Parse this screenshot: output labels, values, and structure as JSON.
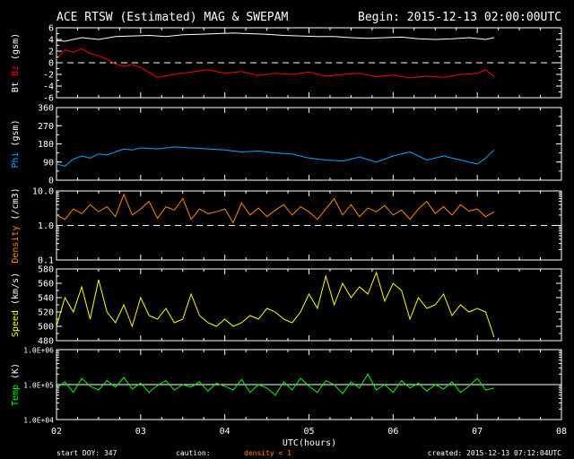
{
  "header": {
    "title": "ACE RTSW (Estimated) MAG & SWEPAM",
    "begin": "Begin: 2015-12-13 02:00:00UTC"
  },
  "footer": {
    "start_doy": "start DOY: 347",
    "caution": "caution:",
    "density_note": "density < 1",
    "created": "created: 2015-12-13 07:12:04UTC"
  },
  "colors": {
    "bt": "#ffffff",
    "bz": "#ff0000",
    "phi": "#00aaff",
    "density": "#ff8800",
    "speed": "#ffff00",
    "temp": "#00ff00",
    "frame": "#ffffff"
  },
  "chart_data": {
    "type": "line",
    "x_axis": {
      "xlabel": "UTC(hours)",
      "range": [
        2,
        8
      ],
      "ticks": [
        2,
        3,
        4,
        5,
        6,
        7,
        8
      ],
      "tick_labels": [
        "02",
        "03",
        "04",
        "05",
        "06",
        "07",
        "08"
      ]
    },
    "panels": [
      {
        "id": "mag",
        "ylabel_parts": [
          {
            "text": "Bt",
            "color": "#ffffff"
          },
          {
            "text": " ",
            "color": "#ffffff"
          },
          {
            "text": "Bz",
            "color": "#ff0000"
          },
          {
            "text": " (gsm)",
            "color": "#ffffff"
          }
        ],
        "scale": "linear",
        "ylim": [
          -6,
          6
        ],
        "yticks": [
          -6,
          -4,
          -2,
          0,
          2,
          4,
          6
        ],
        "ytick_labels": [
          "-6",
          "-4",
          "-2",
          "0",
          "2",
          "4",
          "6"
        ],
        "reference_lines": [
          0
        ],
        "series": [
          {
            "name": "Bt",
            "color": "#ffffff",
            "x": [
              2.0,
              2.1,
              2.3,
              2.5,
              2.7,
              2.9,
              3.1,
              3.3,
              3.5,
              3.7,
              3.9,
              4.1,
              4.3,
              4.5,
              4.7,
              4.9,
              5.1,
              5.3,
              5.5,
              5.7,
              5.9,
              6.1,
              6.3,
              6.5,
              6.7,
              6.9,
              7.1,
              7.2
            ],
            "y": [
              3.8,
              3.7,
              4.3,
              4.0,
              4.5,
              4.6,
              4.7,
              4.5,
              4.8,
              4.9,
              5.0,
              5.1,
              5.0,
              4.9,
              4.7,
              4.6,
              4.5,
              4.5,
              4.3,
              4.2,
              4.3,
              4.4,
              4.1,
              4.0,
              4.1,
              4.3,
              4.0,
              4.3
            ]
          },
          {
            "name": "Bz",
            "color": "#ff0000",
            "x": [
              2.0,
              2.1,
              2.2,
              2.3,
              2.4,
              2.5,
              2.6,
              2.7,
              2.8,
              2.9,
              3.0,
              3.2,
              3.4,
              3.6,
              3.8,
              4.0,
              4.2,
              4.4,
              4.6,
              4.8,
              5.0,
              5.2,
              5.4,
              5.6,
              5.8,
              6.0,
              6.2,
              6.4,
              6.6,
              6.8,
              7.0,
              7.1,
              7.2
            ],
            "y": [
              0.6,
              2.2,
              1.8,
              2.4,
              1.6,
              1.2,
              0.6,
              -0.2,
              -0.6,
              -0.3,
              -0.8,
              -2.5,
              -2.0,
              -1.6,
              -1.2,
              -1.8,
              -1.5,
              -2.2,
              -1.8,
              -2.0,
              -1.6,
              -2.3,
              -2.0,
              -1.8,
              -2.4,
              -2.1,
              -2.6,
              -2.3,
              -2.5,
              -2.0,
              -1.8,
              -1.2,
              -2.4
            ]
          }
        ]
      },
      {
        "id": "phi",
        "ylabel_parts": [
          {
            "text": "Phi",
            "color": "#00aaff"
          },
          {
            "text": " (gsm)",
            "color": "#ffffff"
          }
        ],
        "scale": "linear",
        "ylim": [
          0,
          360
        ],
        "yticks": [
          0,
          90,
          180,
          270,
          360
        ],
        "ytick_labels": [
          "0",
          "90",
          "180",
          "270",
          "360"
        ],
        "reference_lines": [],
        "series": [
          {
            "name": "Phi",
            "color": "#00aaff",
            "x": [
              2.0,
              2.1,
              2.2,
              2.3,
              2.4,
              2.5,
              2.6,
              2.7,
              2.8,
              2.9,
              3.0,
              3.2,
              3.4,
              3.6,
              3.8,
              4.0,
              4.2,
              4.4,
              4.6,
              4.8,
              5.0,
              5.2,
              5.4,
              5.6,
              5.8,
              6.0,
              6.2,
              6.4,
              6.6,
              6.8,
              7.0,
              7.1,
              7.2
            ],
            "y": [
              80,
              70,
              105,
              120,
              110,
              130,
              125,
              140,
              155,
              150,
              160,
              155,
              165,
              160,
              155,
              150,
              140,
              145,
              135,
              130,
              110,
              100,
              95,
              115,
              90,
              120,
              140,
              100,
              120,
              100,
              80,
              110,
              150
            ]
          }
        ]
      },
      {
        "id": "density",
        "ylabel_parts": [
          {
            "text": "Density",
            "color": "#ff8800"
          },
          {
            "text": " (/cm3)",
            "color": "#ffffff"
          }
        ],
        "scale": "log",
        "ylim": [
          0.1,
          10.0
        ],
        "yticks": [
          0.1,
          1.0,
          10.0
        ],
        "ytick_labels": [
          "0.1",
          "1.0",
          "10.0"
        ],
        "reference_lines": [
          1.0
        ],
        "series": [
          {
            "name": "Density",
            "color": "#ff8800",
            "x": [
              2.0,
              2.1,
              2.2,
              2.3,
              2.4,
              2.5,
              2.6,
              2.7,
              2.8,
              2.9,
              3.0,
              3.1,
              3.2,
              3.3,
              3.4,
              3.5,
              3.6,
              3.7,
              3.8,
              3.9,
              4.0,
              4.1,
              4.2,
              4.3,
              4.4,
              4.5,
              4.6,
              4.7,
              4.8,
              4.9,
              5.0,
              5.1,
              5.2,
              5.3,
              5.4,
              5.5,
              5.6,
              5.7,
              5.8,
              5.9,
              6.0,
              6.1,
              6.2,
              6.3,
              6.4,
              6.5,
              6.6,
              6.7,
              6.8,
              6.9,
              7.0,
              7.1,
              7.2
            ],
            "y": [
              2.0,
              1.5,
              3.0,
              2.2,
              4.0,
              2.5,
              3.5,
              1.8,
              8.0,
              2.0,
              3.0,
              5.0,
              1.6,
              3.5,
              2.8,
              6.0,
              1.5,
              3.0,
              2.2,
              2.5,
              3.0,
              1.2,
              4.5,
              2.0,
              3.2,
              1.8,
              2.8,
              4.0,
              2.0,
              3.5,
              2.5,
              1.5,
              3.0,
              6.0,
              2.0,
              4.0,
              1.8,
              3.2,
              2.5,
              3.8,
              2.0,
              2.8,
              1.5,
              3.0,
              5.0,
              2.2,
              3.5,
              2.0,
              4.0,
              2.6,
              3.0,
              1.8,
              2.5
            ]
          }
        ]
      },
      {
        "id": "speed",
        "ylabel_parts": [
          {
            "text": "Speed",
            "color": "#ffff00"
          },
          {
            "text": " (km/s)",
            "color": "#ffffff"
          }
        ],
        "scale": "linear",
        "ylim": [
          480,
          580
        ],
        "yticks": [
          480,
          500,
          520,
          540,
          560,
          580
        ],
        "ytick_labels": [
          "480",
          "500",
          "520",
          "540",
          "560",
          "580"
        ],
        "reference_lines": [],
        "series": [
          {
            "name": "Speed",
            "color": "#ffff00",
            "x": [
              2.0,
              2.1,
              2.2,
              2.3,
              2.4,
              2.5,
              2.6,
              2.7,
              2.8,
              2.9,
              3.0,
              3.1,
              3.2,
              3.3,
              3.4,
              3.5,
              3.6,
              3.7,
              3.8,
              3.9,
              4.0,
              4.1,
              4.2,
              4.3,
              4.4,
              4.5,
              4.6,
              4.7,
              4.8,
              4.9,
              5.0,
              5.1,
              5.2,
              5.3,
              5.4,
              5.5,
              5.6,
              5.7,
              5.8,
              5.9,
              6.0,
              6.1,
              6.2,
              6.3,
              6.4,
              6.5,
              6.6,
              6.7,
              6.8,
              6.9,
              7.0,
              7.1,
              7.2
            ],
            "y": [
              500,
              540,
              520,
              555,
              510,
              565,
              520,
              505,
              530,
              500,
              540,
              515,
              510,
              525,
              505,
              510,
              545,
              515,
              505,
              500,
              510,
              500,
              505,
              515,
              510,
              525,
              520,
              510,
              505,
              520,
              545,
              525,
              570,
              530,
              560,
              540,
              555,
              545,
              575,
              535,
              560,
              550,
              510,
              540,
              525,
              530,
              545,
              515,
              530,
              520,
              525,
              520,
              485
            ]
          }
        ]
      },
      {
        "id": "temp",
        "ylabel_parts": [
          {
            "text": "Temp",
            "color": "#00ff00"
          },
          {
            "text": " (K)",
            "color": "#ffffff"
          }
        ],
        "scale": "log",
        "ylim": [
          10000,
          1000000
        ],
        "yticks": [
          10000,
          100000,
          1000000
        ],
        "ytick_labels": [
          "1.0E+04",
          "1.0E+05",
          "1.0E+06"
        ],
        "reference_lines": [
          100000
        ],
        "series": [
          {
            "name": "Temp",
            "color": "#00ff00",
            "x": [
              2.0,
              2.1,
              2.2,
              2.3,
              2.4,
              2.5,
              2.6,
              2.7,
              2.8,
              2.9,
              3.0,
              3.1,
              3.2,
              3.3,
              3.4,
              3.5,
              3.6,
              3.7,
              3.8,
              3.9,
              4.0,
              4.1,
              4.2,
              4.3,
              4.4,
              4.5,
              4.6,
              4.7,
              4.8,
              4.9,
              5.0,
              5.1,
              5.2,
              5.3,
              5.4,
              5.5,
              5.6,
              5.7,
              5.8,
              5.9,
              6.0,
              6.1,
              6.2,
              6.3,
              6.4,
              6.5,
              6.6,
              6.7,
              6.8,
              6.9,
              7.0,
              7.1,
              7.2
            ],
            "y": [
              80000,
              120000,
              60000,
              150000,
              90000,
              70000,
              130000,
              85000,
              160000,
              75000,
              110000,
              60000,
              95000,
              130000,
              70000,
              100000,
              85000,
              120000,
              65000,
              110000,
              90000,
              70000,
              140000,
              60000,
              100000,
              80000,
              50000,
              120000,
              70000,
              150000,
              90000,
              60000,
              130000,
              100000,
              55000,
              120000,
              80000,
              200000,
              70000,
              100000,
              60000,
              130000,
              80000,
              110000,
              65000,
              100000,
              75000,
              120000,
              60000,
              90000,
              150000,
              70000,
              80000
            ]
          }
        ]
      }
    ]
  }
}
